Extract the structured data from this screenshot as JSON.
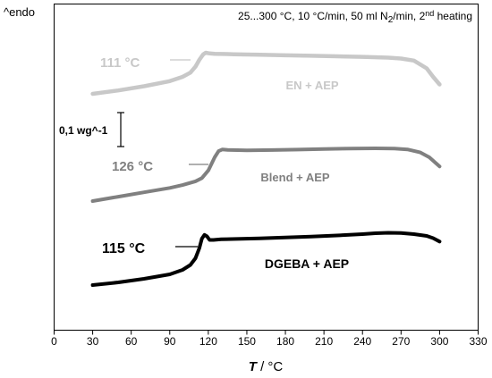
{
  "chart_data": {
    "type": "line",
    "ylabel": "^endo",
    "condition": {
      "pre": "25...300 °C, 10 °C/min, 50 ml N",
      "sub": "2",
      "mid": "/min, 2",
      "sup": "nd",
      "post": " heating"
    },
    "xlabel_var": "T",
    "xlabel_unit": " / °C",
    "xlim": [
      0,
      330
    ],
    "xticks": [
      0,
      30,
      60,
      90,
      120,
      150,
      180,
      210,
      240,
      270,
      300,
      330
    ],
    "y_ticks_shown": false,
    "scale_bar_label": "0,1 wg^-1",
    "series": [
      {
        "name": "EN + AEP",
        "color": "#c8c8c8",
        "tg_label": "111 °C",
        "x": [
          30,
          50,
          70,
          90,
          100,
          106,
          110,
          113,
          116,
          118,
          121,
          125,
          140,
          160,
          180,
          200,
          220,
          240,
          260,
          270,
          280,
          290,
          295,
          300
        ],
        "y": [
          0.0,
          0.02,
          0.045,
          0.075,
          0.1,
          0.125,
          0.16,
          0.2,
          0.232,
          0.242,
          0.238,
          0.236,
          0.233,
          0.23,
          0.227,
          0.224,
          0.221,
          0.218,
          0.213,
          0.208,
          0.196,
          0.15,
          0.1,
          0.055
        ]
      },
      {
        "name": "Blend + AEP",
        "color": "#808080",
        "tg_label": "126 °C",
        "x": [
          30,
          50,
          70,
          90,
          100,
          110,
          115,
          120,
          125,
          128,
          131,
          135,
          150,
          170,
          190,
          210,
          230,
          250,
          265,
          275,
          285,
          292,
          300
        ],
        "y": [
          0.0,
          0.02,
          0.04,
          0.06,
          0.073,
          0.09,
          0.105,
          0.14,
          0.2,
          0.228,
          0.236,
          0.234,
          0.232,
          0.233,
          0.235,
          0.238,
          0.24,
          0.241,
          0.24,
          0.236,
          0.222,
          0.2,
          0.158
        ]
      },
      {
        "name": "DGEBA + AEP",
        "color": "#000000",
        "tg_label": "115 °C",
        "x": [
          30,
          50,
          70,
          90,
          100,
          106,
          110,
          113,
          115,
          117,
          119,
          121,
          124,
          130,
          160,
          180,
          200,
          220,
          240,
          250,
          260,
          270,
          280,
          290,
          295,
          300
        ],
        "y": [
          0.0,
          0.012,
          0.028,
          0.048,
          0.068,
          0.09,
          0.12,
          0.165,
          0.208,
          0.225,
          0.218,
          0.202,
          0.202,
          0.205,
          0.209,
          0.213,
          0.217,
          0.222,
          0.228,
          0.232,
          0.234,
          0.233,
          0.228,
          0.22,
          0.21,
          0.195
        ]
      }
    ]
  }
}
